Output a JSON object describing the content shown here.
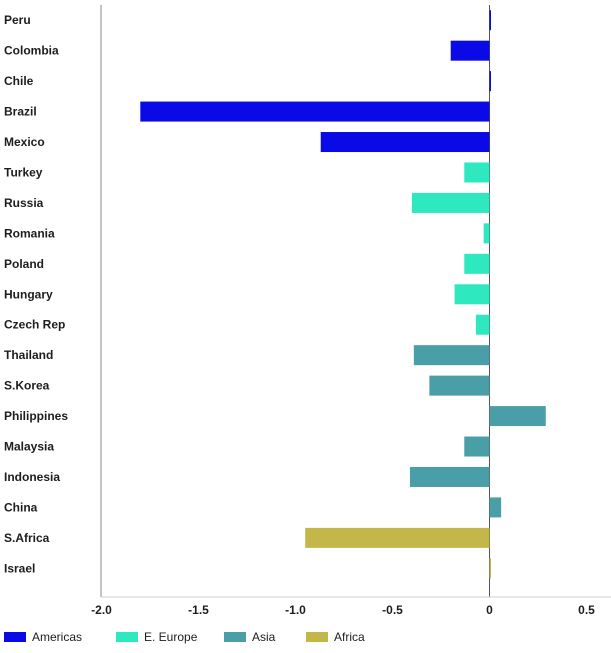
{
  "chart_data": {
    "type": "bar",
    "orientation": "horizontal",
    "title": "",
    "xlabel": "",
    "ylabel": "",
    "xlim": [
      -2.1,
      0.65
    ],
    "xticks": [
      -2.0,
      -1.5,
      -1.0,
      -0.5,
      0,
      0.5
    ],
    "xtick_labels": [
      "-2.0",
      "-1.5",
      "-1.0",
      "-0.5",
      "0",
      "0.5"
    ],
    "grid": false,
    "legend_position": "bottom",
    "groups": [
      {
        "name": "Americas",
        "color": "#0a0ae6"
      },
      {
        "name": "E. Europe",
        "color": "#2ee8bf"
      },
      {
        "name": "Asia",
        "color": "#4a9ea8"
      },
      {
        "name": "Africa",
        "color": "#c4b74a"
      }
    ],
    "bars": [
      {
        "category": "Peru",
        "value": 0.0,
        "group": "Americas"
      },
      {
        "category": "Colombia",
        "value": -0.2,
        "group": "Americas"
      },
      {
        "category": "Chile",
        "value": 0.0,
        "group": "Americas"
      },
      {
        "category": "Brazil",
        "value": -1.8,
        "group": "Americas"
      },
      {
        "category": "Mexico",
        "value": -0.87,
        "group": "Americas"
      },
      {
        "category": "Turkey",
        "value": -0.13,
        "group": "E. Europe"
      },
      {
        "category": "Russia",
        "value": -0.4,
        "group": "E. Europe"
      },
      {
        "category": "Romania",
        "value": -0.03,
        "group": "E. Europe"
      },
      {
        "category": "Poland",
        "value": -0.13,
        "group": "E. Europe"
      },
      {
        "category": "Hungary",
        "value": -0.18,
        "group": "E. Europe"
      },
      {
        "category": "Czech Rep",
        "value": -0.07,
        "group": "E. Europe"
      },
      {
        "category": "Thailand",
        "value": -0.39,
        "group": "Asia"
      },
      {
        "category": "S.Korea",
        "value": -0.31,
        "group": "Asia"
      },
      {
        "category": "Philippines",
        "value": 0.29,
        "group": "Asia"
      },
      {
        "category": "Malaysia",
        "value": -0.13,
        "group": "Asia"
      },
      {
        "category": "Indonesia",
        "value": -0.41,
        "group": "Asia"
      },
      {
        "category": "China",
        "value": 0.06,
        "group": "Asia"
      },
      {
        "category": "S.Africa",
        "value": -0.95,
        "group": "Africa"
      },
      {
        "category": "Israel",
        "value": 0.0,
        "group": "Africa"
      }
    ]
  }
}
